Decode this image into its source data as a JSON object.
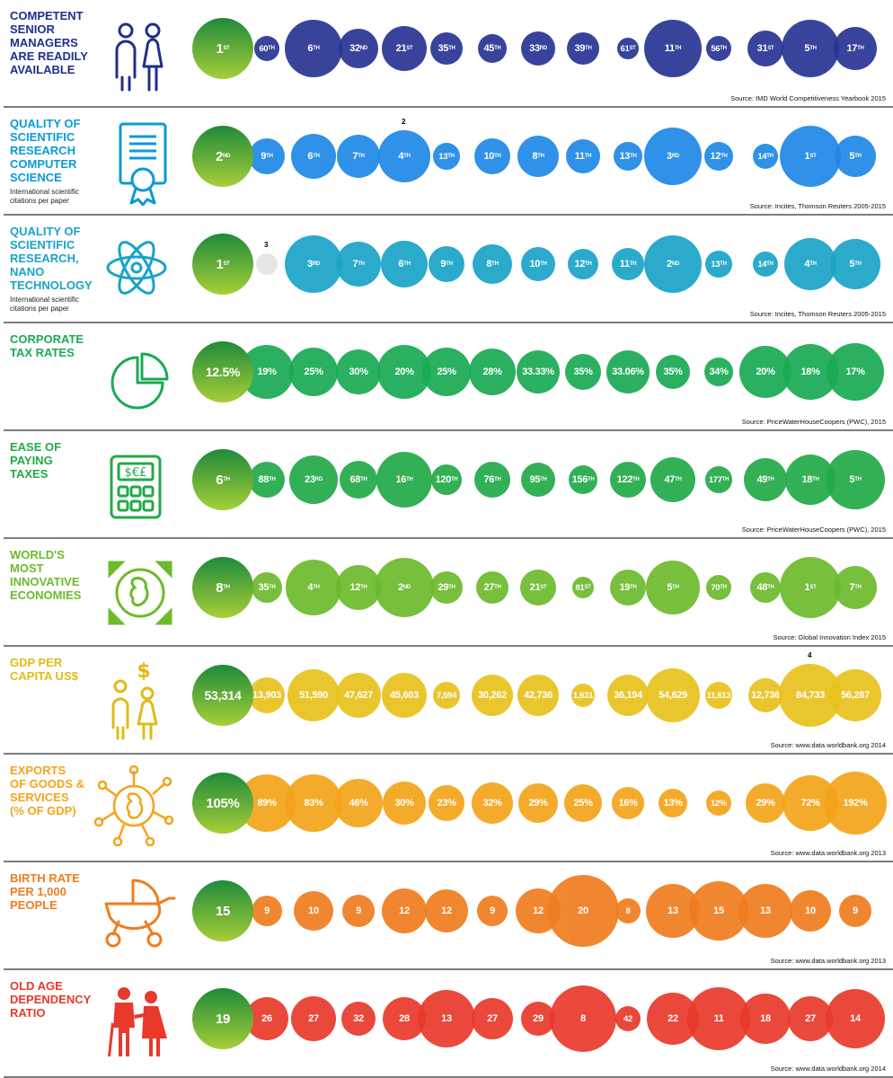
{
  "colors": {
    "lead_from": "#1f8a3a",
    "lead_to": "#a6cf38",
    "row_colors": [
      "#283593",
      "#1e88e5",
      "#1aa3c8",
      "#1aaa54",
      "#22aa48",
      "#6cba2c",
      "#e8c21d",
      "#f4a41a",
      "#ef7d1f",
      "#e8392b"
    ],
    "label_colors": [
      "#1f2f8c",
      "#0a9ad8",
      "#1aa3c8",
      "#1aaa54",
      "#22aa48",
      "#6cba2c",
      "#e0bb16",
      "#f4a41a",
      "#ef7d1f",
      "#e8392b"
    ]
  },
  "rows": [
    {
      "label_lines": [
        "COMPETENT",
        "SENIOR",
        "MANAGERS",
        "ARE READILY",
        "AVAILABLE"
      ],
      "sub": "",
      "icon": "people-icon",
      "source": "Source: IMD World Competitiveness Yearbook 2015",
      "lead": {
        "value": "1",
        "suffix": "ST"
      },
      "values": [
        [
          "60",
          "TH"
        ],
        [
          "6",
          "TH"
        ],
        [
          "32",
          "ND"
        ],
        [
          "21",
          "ST"
        ],
        [
          "35",
          "TH"
        ],
        [
          "45",
          "TH"
        ],
        [
          "33",
          "RD"
        ],
        [
          "39",
          "TH"
        ],
        [
          "61",
          "ST"
        ],
        [
          "11",
          "TH"
        ],
        [
          "56",
          "TH"
        ],
        [
          "31",
          "ST"
        ],
        [
          "5",
          "TH"
        ],
        [
          "17",
          "TH"
        ]
      ],
      "sizes": [
        28,
        64,
        44,
        50,
        36,
        32,
        38,
        36,
        24,
        64,
        28,
        40,
        64,
        48
      ],
      "footnote": null
    },
    {
      "label_lines": [
        "QUALITY OF",
        "SCIENTIFIC",
        "RESEARCH",
        "COMPUTER",
        "SCIENCE"
      ],
      "sub": "International scientific citations per paper",
      "icon": "certificate-icon",
      "source": "Source: Incites, Thomson Reuters 2005-2015",
      "lead": {
        "value": "2",
        "suffix": "ND"
      },
      "values": [
        [
          "9",
          "TH"
        ],
        [
          "6",
          "TH"
        ],
        [
          "7",
          "TH"
        ],
        [
          "4",
          "TH"
        ],
        [
          "13",
          "TH"
        ],
        [
          "10",
          "TH"
        ],
        [
          "8",
          "TH"
        ],
        [
          "11",
          "TH"
        ],
        [
          "13",
          "TH"
        ],
        [
          "3",
          "RD"
        ],
        [
          "12",
          "TH"
        ],
        [
          "14",
          "TH"
        ],
        [
          "1",
          "ST"
        ],
        [
          "5",
          "TH"
        ]
      ],
      "sizes": [
        40,
        50,
        48,
        58,
        30,
        40,
        46,
        38,
        32,
        64,
        32,
        28,
        68,
        46
      ],
      "footnote": {
        "text": "2",
        "index": 3
      }
    },
    {
      "label_lines": [
        "QUALITY OF",
        "SCIENTIFIC",
        "RESEARCH,",
        "NANO",
        "TECHNOLOGY"
      ],
      "sub": "International scientific citations per paper",
      "icon": "atom-icon",
      "source": "Source: Incites, Thomson Reuters 2005-2015",
      "lead": {
        "value": "1",
        "suffix": "ST"
      },
      "values": [
        [
          "",
          ""
        ],
        [
          "3",
          "RD"
        ],
        [
          "7",
          "TH"
        ],
        [
          "6",
          "TH"
        ],
        [
          "9",
          "TH"
        ],
        [
          "8",
          "TH"
        ],
        [
          "10",
          "TH"
        ],
        [
          "12",
          "TH"
        ],
        [
          "11",
          "TH"
        ],
        [
          "2",
          "ND"
        ],
        [
          "13",
          "TH"
        ],
        [
          "14",
          "TH"
        ],
        [
          "4",
          "TH"
        ],
        [
          "5",
          "TH"
        ]
      ],
      "sizes": [
        24,
        64,
        50,
        52,
        40,
        44,
        38,
        34,
        36,
        64,
        30,
        28,
        58,
        56
      ],
      "footnote": {
        "text": "3",
        "index": 0
      }
    },
    {
      "label_lines": [
        "CORPORATE",
        "TAX RATES"
      ],
      "sub": "",
      "icon": "pie-chart-icon",
      "source": "Source: PriceWaterHouseCoopers (PWC), 2015",
      "lead": {
        "value": "12.5%",
        "suffix": ""
      },
      "values": [
        [
          "19%",
          ""
        ],
        [
          "25%",
          ""
        ],
        [
          "30%",
          ""
        ],
        [
          "20%",
          ""
        ],
        [
          "25%",
          ""
        ],
        [
          "28%",
          ""
        ],
        [
          "33.33%",
          ""
        ],
        [
          "35%",
          ""
        ],
        [
          "33.06%",
          ""
        ],
        [
          "35%",
          ""
        ],
        [
          "34%",
          ""
        ],
        [
          "20%",
          ""
        ],
        [
          "18%",
          ""
        ],
        [
          "17%",
          ""
        ]
      ],
      "sizes": [
        60,
        54,
        50,
        60,
        54,
        52,
        48,
        40,
        48,
        38,
        32,
        58,
        62,
        64
      ],
      "footnote": null
    },
    {
      "label_lines": [
        "EASE OF",
        "PAYING",
        "TAXES"
      ],
      "sub": "",
      "icon": "calculator-icon",
      "source": "Source: PriceWaterHouseCoopers (PWC), 2015",
      "lead": {
        "value": "6",
        "suffix": "TH"
      },
      "values": [
        [
          "88",
          "TH"
        ],
        [
          "23",
          "RD"
        ],
        [
          "68",
          "TH"
        ],
        [
          "16",
          "TH"
        ],
        [
          "120",
          "TH"
        ],
        [
          "76",
          "TH"
        ],
        [
          "95",
          "TH"
        ],
        [
          "156",
          "TH"
        ],
        [
          "122",
          "TH"
        ],
        [
          "47",
          "TH"
        ],
        [
          "177",
          "TH"
        ],
        [
          "49",
          "TH"
        ],
        [
          "18",
          "TH"
        ],
        [
          "5",
          "TH"
        ]
      ],
      "sizes": [
        40,
        54,
        42,
        62,
        34,
        40,
        38,
        32,
        40,
        50,
        30,
        48,
        56,
        66
      ],
      "footnote": null
    },
    {
      "label_lines": [
        "WORLD'S",
        "MOST",
        "INNOVATIVE",
        "ECONOMIES"
      ],
      "sub": "",
      "icon": "ireland-map-icon",
      "source": "Source: Global Innovation Index 2015",
      "lead": {
        "value": "8",
        "suffix": "TH"
      },
      "values": [
        [
          "35",
          "TH"
        ],
        [
          "4",
          "TH"
        ],
        [
          "12",
          "TH"
        ],
        [
          "2",
          "ND"
        ],
        [
          "29",
          "TH"
        ],
        [
          "27",
          "TH"
        ],
        [
          "21",
          "ST"
        ],
        [
          "81",
          "ST"
        ],
        [
          "19",
          "TH"
        ],
        [
          "5",
          "TH"
        ],
        [
          "70",
          "TH"
        ],
        [
          "48",
          "TH"
        ],
        [
          "1",
          "ST"
        ],
        [
          "7",
          "TH"
        ]
      ],
      "sizes": [
        34,
        62,
        50,
        66,
        36,
        36,
        40,
        24,
        40,
        60,
        28,
        34,
        68,
        48
      ],
      "footnote": null
    },
    {
      "label_lines": [
        "GDP PER",
        "CAPITA US$"
      ],
      "sub": "",
      "icon": "family-dollar-icon",
      "source": "Source: www.data.worldbank.org 2014",
      "lead": {
        "value": "53,314",
        "suffix": ""
      },
      "values": [
        [
          "13,903",
          ""
        ],
        [
          "51,590",
          ""
        ],
        [
          "47,627",
          ""
        ],
        [
          "45,603",
          ""
        ],
        [
          "7,594",
          ""
        ],
        [
          "30,262",
          ""
        ],
        [
          "42,736",
          ""
        ],
        [
          "1,631",
          ""
        ],
        [
          "36,194",
          ""
        ],
        [
          "54,629",
          ""
        ],
        [
          "11,613",
          ""
        ],
        [
          "12,736",
          ""
        ],
        [
          "84,733",
          ""
        ],
        [
          "56,287",
          ""
        ]
      ],
      "sizes": [
        40,
        58,
        50,
        50,
        30,
        46,
        46,
        26,
        46,
        60,
        30,
        38,
        70,
        58
      ],
      "footnote": {
        "text": "4",
        "index": 12
      }
    },
    {
      "label_lines": [
        "EXPORTS",
        "OF GOODS &",
        "SERVICES",
        "(% OF GDP)"
      ],
      "sub": "",
      "icon": "globe-network-icon",
      "source": "Source: www.data.worldbank.org 2013",
      "lead": {
        "value": "105%",
        "suffix": ""
      },
      "values": [
        [
          "89%",
          ""
        ],
        [
          "83%",
          ""
        ],
        [
          "46%",
          ""
        ],
        [
          "30%",
          ""
        ],
        [
          "23%",
          ""
        ],
        [
          "32%",
          ""
        ],
        [
          "29%",
          ""
        ],
        [
          "25%",
          ""
        ],
        [
          "16%",
          ""
        ],
        [
          "13%",
          ""
        ],
        [
          "12%",
          ""
        ],
        [
          "29%",
          ""
        ],
        [
          "72%",
          ""
        ],
        [
          "192%",
          ""
        ]
      ],
      "sizes": [
        64,
        64,
        54,
        48,
        40,
        46,
        44,
        42,
        36,
        32,
        28,
        44,
        62,
        70
      ],
      "footnote": null
    },
    {
      "label_lines": [
        "BIRTH RATE",
        "PER 1,000",
        "PEOPLE"
      ],
      "sub": "",
      "icon": "pram-icon",
      "source": "Source: www.data.worldbank.org 2013",
      "lead": {
        "value": "15",
        "suffix": ""
      },
      "values": [
        [
          "9",
          ""
        ],
        [
          "10",
          ""
        ],
        [
          "9",
          ""
        ],
        [
          "12",
          ""
        ],
        [
          "12",
          ""
        ],
        [
          "9",
          ""
        ],
        [
          "12",
          ""
        ],
        [
          "20",
          ""
        ],
        [
          "8",
          ""
        ],
        [
          "13",
          ""
        ],
        [
          "15",
          ""
        ],
        [
          "13",
          ""
        ],
        [
          "10",
          ""
        ],
        [
          "9",
          ""
        ]
      ],
      "sizes": [
        34,
        44,
        36,
        50,
        48,
        34,
        50,
        80,
        28,
        60,
        66,
        60,
        46,
        36
      ],
      "footnote": null
    },
    {
      "label_lines": [
        "OLD AGE",
        "DEPENDENCY",
        "RATIO"
      ],
      "sub": "",
      "icon": "elderly-couple-icon",
      "source": "Source: www.data.worldbank.org 2014",
      "lead": {
        "value": "19",
        "suffix": ""
      },
      "values": [
        [
          "26",
          ""
        ],
        [
          "27",
          ""
        ],
        [
          "32",
          ""
        ],
        [
          "28",
          ""
        ],
        [
          "13",
          ""
        ],
        [
          "27",
          ""
        ],
        [
          "29",
          ""
        ],
        [
          "8",
          ""
        ],
        [
          "42",
          ""
        ],
        [
          "22",
          ""
        ],
        [
          "11",
          ""
        ],
        [
          "18",
          ""
        ],
        [
          "27",
          ""
        ],
        [
          "14",
          ""
        ]
      ],
      "sizes": [
        48,
        50,
        38,
        48,
        64,
        46,
        38,
        74,
        28,
        58,
        70,
        56,
        50,
        66
      ],
      "footnote": null
    }
  ]
}
